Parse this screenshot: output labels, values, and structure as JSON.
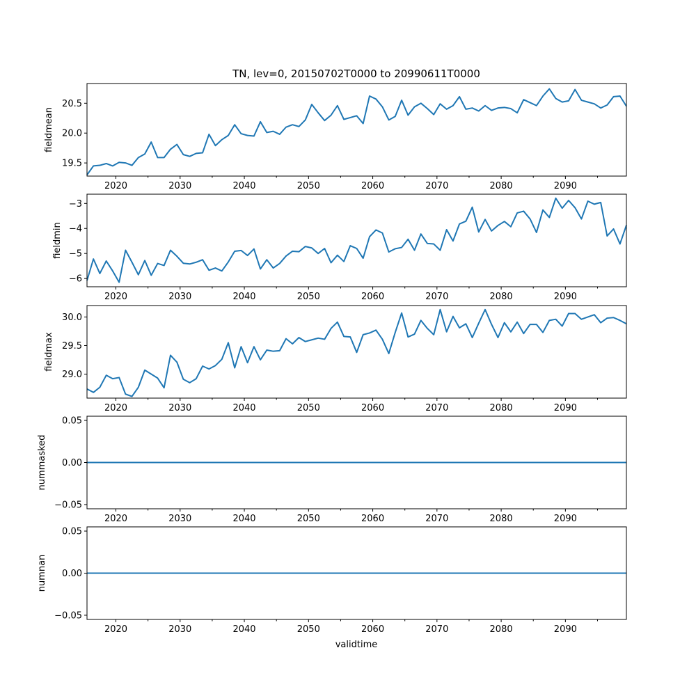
{
  "chart_data": {
    "type": "line",
    "title": "TN, lev=0, 20150702T0000 to 20990611T0000",
    "xlabel": "validtime",
    "xlim": [
      2015.5,
      2099.5
    ],
    "xticks": [
      2020,
      2030,
      2040,
      2050,
      2060,
      2070,
      2080,
      2090
    ],
    "xtick_labels": [
      "2020",
      "2030",
      "2040",
      "2050",
      "2060",
      "2070",
      "2080",
      "2090"
    ],
    "x": [
      2015.5,
      2016.5,
      2017.5,
      2018.5,
      2019.5,
      2020.5,
      2021.5,
      2022.5,
      2023.5,
      2024.5,
      2025.5,
      2026.5,
      2027.5,
      2028.5,
      2029.5,
      2030.5,
      2031.5,
      2032.5,
      2033.5,
      2034.5,
      2035.5,
      2036.5,
      2037.5,
      2038.5,
      2039.5,
      2040.5,
      2041.5,
      2042.5,
      2043.5,
      2044.5,
      2045.5,
      2046.5,
      2047.5,
      2048.5,
      2049.5,
      2050.5,
      2051.5,
      2052.5,
      2053.5,
      2054.5,
      2055.5,
      2056.5,
      2057.5,
      2058.5,
      2059.5,
      2060.5,
      2061.5,
      2062.5,
      2063.5,
      2064.5,
      2065.5,
      2066.5,
      2067.5,
      2068.5,
      2069.5,
      2070.5,
      2071.5,
      2072.5,
      2073.5,
      2074.5,
      2075.5,
      2076.5,
      2077.5,
      2078.5,
      2079.5,
      2080.5,
      2081.5,
      2082.5,
      2083.5,
      2084.5,
      2085.5,
      2086.5,
      2087.5,
      2088.5,
      2089.5,
      2090.5,
      2091.5,
      2092.5,
      2093.5,
      2094.5,
      2095.5,
      2096.5,
      2097.5,
      2098.5,
      2099.5
    ],
    "panels": [
      {
        "name": "fieldmean",
        "ylabel": "fieldmean",
        "ylim": [
          19.28,
          20.83
        ],
        "yticks": [
          19.5,
          20.0,
          20.5
        ],
        "ytick_labels": [
          "19.5",
          "20.0",
          "20.5"
        ],
        "values": [
          19.3,
          19.45,
          19.46,
          19.49,
          19.45,
          19.51,
          19.5,
          19.46,
          19.59,
          19.65,
          19.85,
          19.59,
          19.59,
          19.73,
          19.81,
          19.64,
          19.61,
          19.66,
          19.67,
          19.98,
          19.79,
          19.89,
          19.96,
          20.14,
          19.99,
          19.96,
          19.95,
          20.19,
          20.01,
          20.03,
          19.98,
          20.1,
          20.14,
          20.11,
          20.22,
          20.48,
          20.34,
          20.21,
          20.3,
          20.46,
          20.23,
          20.26,
          20.29,
          20.16,
          20.62,
          20.57,
          20.44,
          20.22,
          20.28,
          20.55,
          20.3,
          20.44,
          20.5,
          20.41,
          20.31,
          20.49,
          20.4,
          20.46,
          20.61,
          20.4,
          20.42,
          20.37,
          20.46,
          20.38,
          20.42,
          20.43,
          20.41,
          20.34,
          20.56,
          20.51,
          20.46,
          20.62,
          20.74,
          20.58,
          20.52,
          20.54,
          20.73,
          20.55,
          20.52,
          20.49,
          20.42,
          20.47,
          20.61,
          20.62,
          20.45
        ]
      },
      {
        "name": "fieldmin",
        "ylabel": "fieldmin",
        "ylim": [
          -6.33,
          -2.63
        ],
        "yticks": [
          -6,
          -5,
          -4,
          -3
        ],
        "ytick_labels": [
          "−6",
          "−5",
          "−4",
          "−3"
        ],
        "values": [
          -6.08,
          -5.22,
          -5.8,
          -5.3,
          -5.7,
          -6.15,
          -4.87,
          -5.35,
          -5.85,
          -5.28,
          -5.87,
          -5.4,
          -5.48,
          -4.87,
          -5.11,
          -5.39,
          -5.42,
          -5.35,
          -5.25,
          -5.67,
          -5.58,
          -5.7,
          -5.34,
          -4.91,
          -4.88,
          -5.08,
          -4.82,
          -5.62,
          -5.25,
          -5.58,
          -5.4,
          -5.1,
          -4.91,
          -4.93,
          -4.72,
          -4.78,
          -5.0,
          -4.8,
          -5.37,
          -5.07,
          -5.32,
          -4.69,
          -4.8,
          -5.19,
          -4.33,
          -4.06,
          -4.18,
          -4.94,
          -4.81,
          -4.76,
          -4.43,
          -4.87,
          -4.22,
          -4.6,
          -4.62,
          -4.87,
          -4.05,
          -4.5,
          -3.82,
          -3.71,
          -3.15,
          -4.14,
          -3.64,
          -4.1,
          -3.88,
          -3.72,
          -3.93,
          -3.38,
          -3.31,
          -3.62,
          -4.16,
          -3.26,
          -3.56,
          -2.79,
          -3.19,
          -2.88,
          -3.17,
          -3.62,
          -2.91,
          -3.03,
          -2.96,
          -4.3,
          -4.02,
          -4.62,
          -3.87
        ]
      },
      {
        "name": "fieldmax",
        "ylabel": "fieldmax",
        "ylim": [
          28.58,
          30.2
        ],
        "yticks": [
          29.0,
          29.5,
          30.0
        ],
        "ytick_labels": [
          "29.0",
          "29.5",
          "30.0"
        ],
        "values": [
          28.74,
          28.68,
          28.77,
          28.98,
          28.92,
          28.94,
          28.65,
          28.61,
          28.77,
          29.07,
          29.0,
          28.93,
          28.76,
          29.33,
          29.21,
          28.91,
          28.85,
          28.92,
          29.14,
          29.09,
          29.15,
          29.26,
          29.55,
          29.11,
          29.48,
          29.2,
          29.48,
          29.25,
          29.42,
          29.4,
          29.41,
          29.62,
          29.53,
          29.64,
          29.57,
          29.6,
          29.63,
          29.61,
          29.8,
          29.91,
          29.66,
          29.65,
          29.38,
          29.69,
          29.72,
          29.77,
          29.61,
          29.36,
          29.73,
          30.07,
          29.65,
          29.7,
          29.94,
          29.8,
          29.69,
          30.13,
          29.74,
          30.01,
          29.81,
          29.88,
          29.64,
          29.89,
          30.13,
          29.87,
          29.64,
          29.9,
          29.74,
          29.91,
          29.71,
          29.87,
          29.87,
          29.73,
          29.94,
          29.96,
          29.84,
          30.06,
          30.06,
          29.96,
          30.0,
          30.04,
          29.9,
          29.98,
          29.99,
          29.94,
          29.88
        ]
      },
      {
        "name": "nummasked",
        "ylabel": "nummasked",
        "ylim": [
          -0.055,
          0.055
        ],
        "yticks": [
          -0.05,
          0.0,
          0.05
        ],
        "ytick_labels": [
          "−0.05",
          "0.00",
          "0.05"
        ],
        "values": [
          0,
          0,
          0,
          0,
          0,
          0,
          0,
          0,
          0,
          0,
          0,
          0,
          0,
          0,
          0,
          0,
          0,
          0,
          0,
          0,
          0,
          0,
          0,
          0,
          0,
          0,
          0,
          0,
          0,
          0,
          0,
          0,
          0,
          0,
          0,
          0,
          0,
          0,
          0,
          0,
          0,
          0,
          0,
          0,
          0,
          0,
          0,
          0,
          0,
          0,
          0,
          0,
          0,
          0,
          0,
          0,
          0,
          0,
          0,
          0,
          0,
          0,
          0,
          0,
          0,
          0,
          0,
          0,
          0,
          0,
          0,
          0,
          0,
          0,
          0,
          0,
          0,
          0,
          0,
          0,
          0,
          0,
          0,
          0,
          0
        ]
      },
      {
        "name": "numnan",
        "ylabel": "numnan",
        "ylim": [
          -0.055,
          0.055
        ],
        "yticks": [
          -0.05,
          0.0,
          0.05
        ],
        "ytick_labels": [
          "−0.05",
          "0.00",
          "0.05"
        ],
        "values": [
          0,
          0,
          0,
          0,
          0,
          0,
          0,
          0,
          0,
          0,
          0,
          0,
          0,
          0,
          0,
          0,
          0,
          0,
          0,
          0,
          0,
          0,
          0,
          0,
          0,
          0,
          0,
          0,
          0,
          0,
          0,
          0,
          0,
          0,
          0,
          0,
          0,
          0,
          0,
          0,
          0,
          0,
          0,
          0,
          0,
          0,
          0,
          0,
          0,
          0,
          0,
          0,
          0,
          0,
          0,
          0,
          0,
          0,
          0,
          0,
          0,
          0,
          0,
          0,
          0,
          0,
          0,
          0,
          0,
          0,
          0,
          0,
          0,
          0,
          0,
          0,
          0,
          0,
          0,
          0,
          0,
          0,
          0,
          0,
          0
        ]
      }
    ]
  }
}
